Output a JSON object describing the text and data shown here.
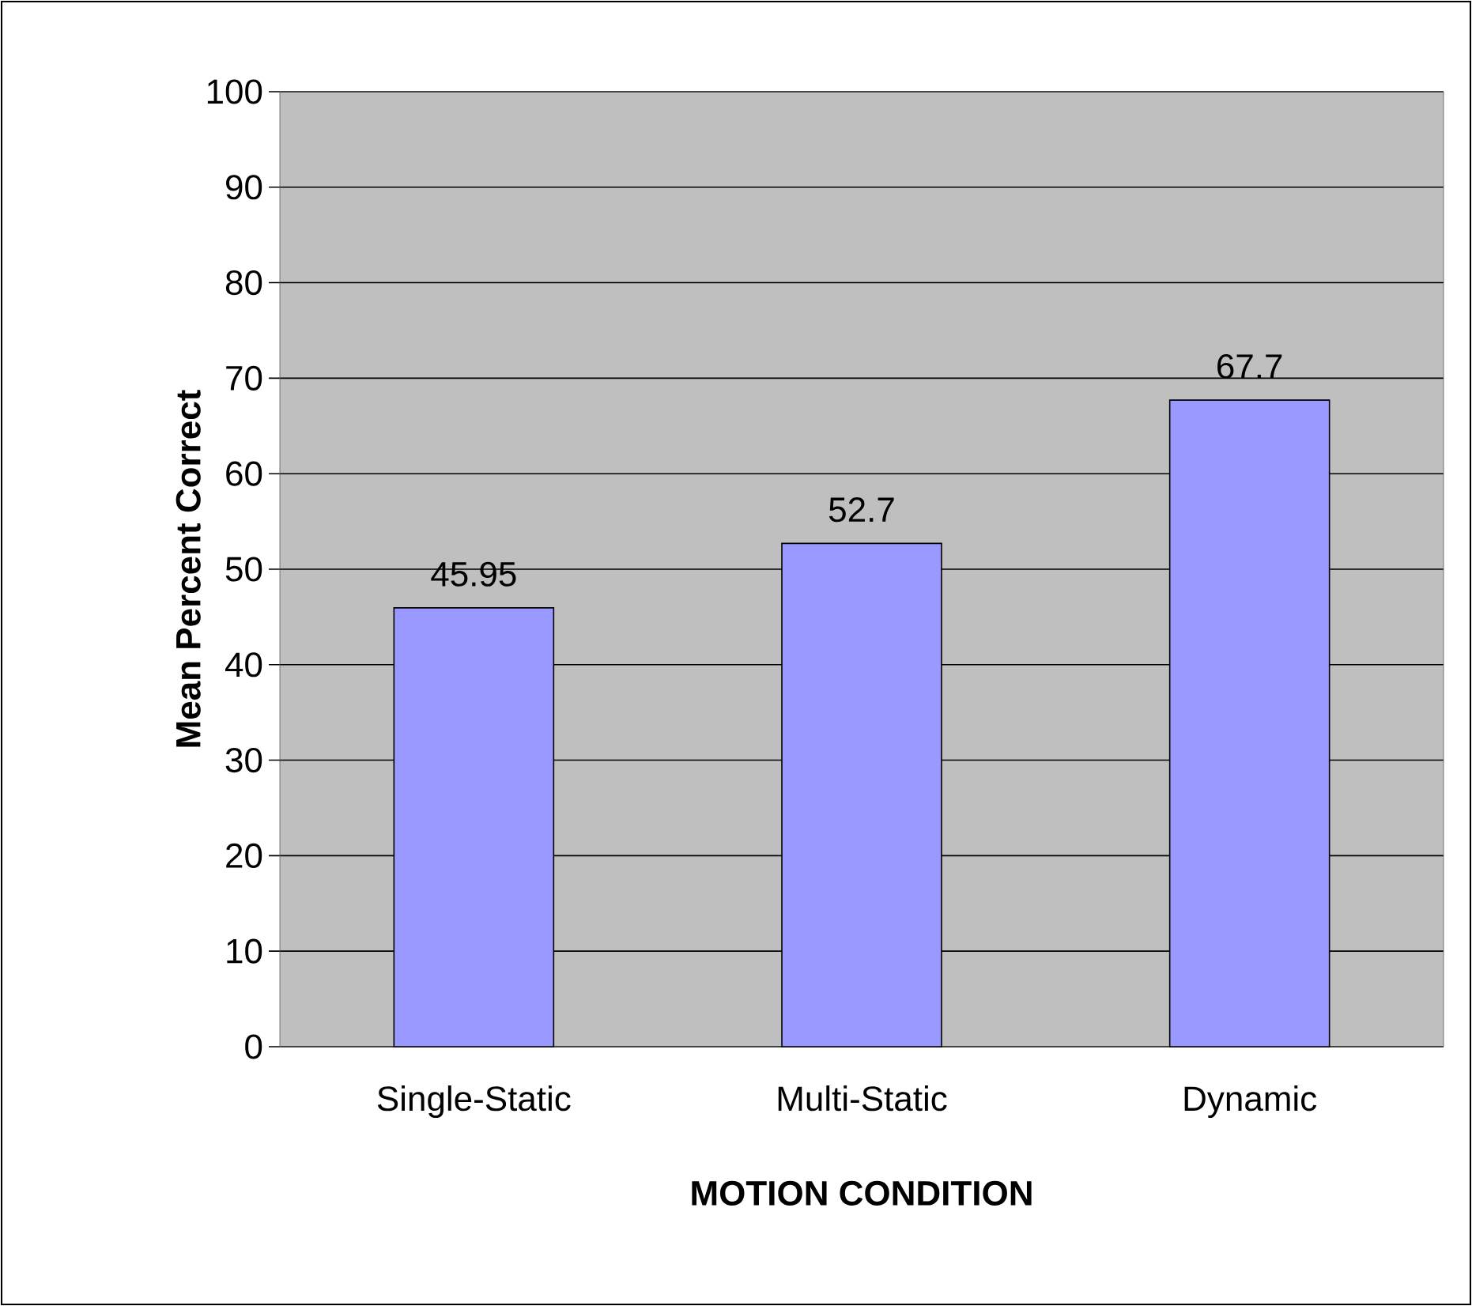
{
  "chart_data": {
    "type": "bar",
    "xlabel": "MOTION CONDITION",
    "ylabel": "Mean Percent Correct",
    "categories": [
      "Single-Static",
      "Multi-Static",
      "Dynamic"
    ],
    "values": [
      45.95,
      52.7,
      67.7
    ],
    "color": "#9999ff",
    "ylim": [
      0,
      100
    ],
    "yticks": [
      0,
      10,
      20,
      30,
      40,
      50,
      60,
      70,
      80,
      90,
      100
    ],
    "grid": "y",
    "data_labels": true
  }
}
